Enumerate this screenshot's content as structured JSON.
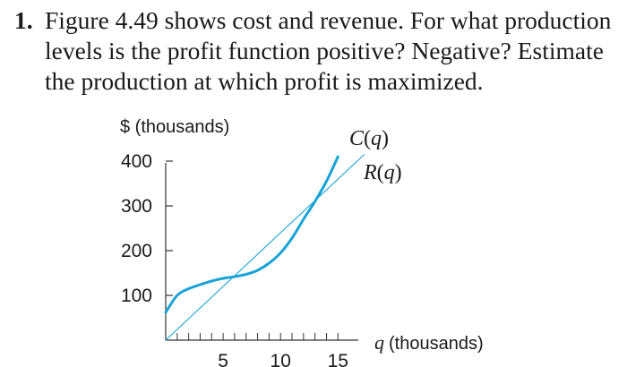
{
  "problem": {
    "number": "1.",
    "lines": [
      "Figure 4.49 shows cost and revenue. For what production",
      "levels is the profit function positive? Negative? Estimate",
      "the production at which profit is maximized."
    ]
  },
  "chart_data": {
    "type": "line",
    "ylabel": "$ (thousands)",
    "xlabel": "q (thousands)",
    "xlabel_var": "q",
    "xlabel_unit": "(thousands)",
    "xlim": [
      0,
      16
    ],
    "ylim": [
      0,
      440
    ],
    "x_ticks": [
      5,
      10,
      15
    ],
    "x_minor_ticks": [
      1,
      2,
      3,
      4,
      5,
      6,
      7,
      8,
      9,
      10,
      11,
      12,
      13,
      14,
      15
    ],
    "y_ticks": [
      100,
      200,
      300,
      400
    ],
    "grid": false,
    "series": [
      {
        "name": "C(q)",
        "name_func": "C",
        "name_var": "q",
        "color": "#1aa3d6",
        "x": [
          0,
          1,
          2,
          3,
          4,
          5,
          6,
          7,
          8,
          9,
          10,
          11,
          12,
          13,
          14,
          15
        ],
        "y": [
          62,
          100,
          115,
          124,
          132,
          138,
          142,
          147,
          156,
          172,
          195,
          228,
          270,
          310,
          355,
          410
        ]
      },
      {
        "name": "R(q)",
        "name_func": "R",
        "name_var": "q",
        "color": "#1aa3d6",
        "x": [
          0,
          17.3
        ],
        "y": [
          0,
          415
        ]
      }
    ]
  }
}
